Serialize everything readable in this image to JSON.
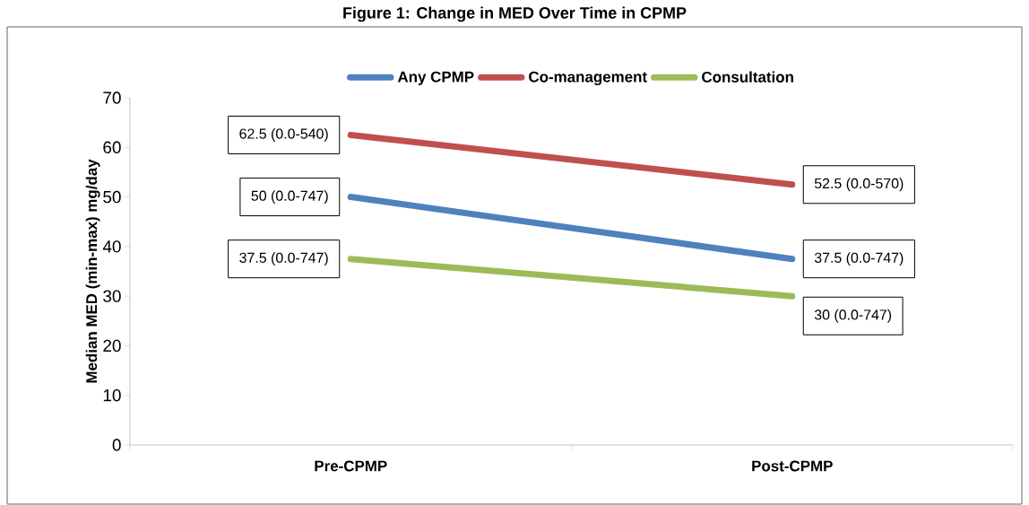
{
  "chart_data": {
    "type": "line",
    "title": "Figure 1: Change in MED Over Time in CPMP",
    "ylabel": "Median MED (min-max) mg/day",
    "categories": [
      "Pre-CPMP",
      "Post-CPMP"
    ],
    "series": [
      {
        "name": "Any CPMP",
        "color": "#4f81bd",
        "values": [
          50,
          37.5
        ],
        "value_labels": [
          "50 (0.0-747)",
          "37.5 (0.0-747)"
        ]
      },
      {
        "name": "Co-management",
        "color": "#c0504d",
        "values": [
          62.5,
          52.5
        ],
        "value_labels": [
          "62.5 (0.0-540)",
          "52.5 (0.0-570)"
        ]
      },
      {
        "name": "Consultation",
        "color": "#9bbb59",
        "values": [
          37.5,
          30
        ],
        "value_labels": [
          "37.5 (0.0-747)",
          "30 (0.0-747)"
        ]
      }
    ],
    "ylim": [
      0,
      70
    ],
    "yticks": [
      0,
      10,
      20,
      30,
      40,
      50,
      60,
      70
    ],
    "legend": "top",
    "grid": false,
    "marker": "none",
    "line_style": "solid"
  }
}
